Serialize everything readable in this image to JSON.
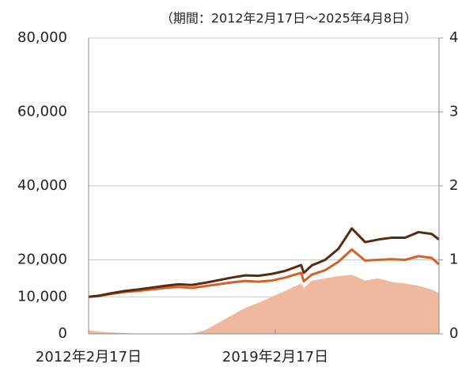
{
  "chart_data": {
    "type": "line",
    "subtitle": "（期間：2012年2月17日～2025年4月8日）",
    "x": [
      2012.13,
      2012.5,
      2013,
      2013.5,
      2014,
      2014.5,
      2015,
      2015.5,
      2016,
      2016.5,
      2017,
      2017.5,
      2018,
      2018.5,
      2019,
      2019.5,
      2020.1,
      2020.2,
      2020.5,
      2021,
      2021.5,
      2022,
      2022.5,
      2023,
      2023.5,
      2024,
      2024.5,
      2025,
      2025.27
    ],
    "series": [
      {
        "type": "area",
        "axis": "y2",
        "color": "#efb9a0",
        "values": [
          0.05,
          0.03,
          0.02,
          0.01,
          0,
          0,
          0,
          0,
          0,
          0.05,
          0.15,
          0.25,
          0.35,
          0.42,
          0.5,
          0.58,
          0.68,
          0.62,
          0.72,
          0.75,
          0.78,
          0.8,
          0.72,
          0.75,
          0.7,
          0.68,
          0.65,
          0.6,
          0.55
        ]
      },
      {
        "type": "line",
        "color": "#d2622a",
        "values": [
          10000,
          10200,
          10800,
          11300,
          11600,
          12000,
          12400,
          12700,
          12400,
          12900,
          13400,
          13900,
          14300,
          14100,
          14400,
          15200,
          16500,
          14200,
          16000,
          17200,
          19500,
          22800,
          19800,
          20000,
          20200,
          20000,
          21000,
          20500,
          18800
        ]
      },
      {
        "type": "line",
        "color": "#5a2a10",
        "values": [
          10000,
          10300,
          11000,
          11600,
          12000,
          12500,
          13000,
          13400,
          13200,
          13800,
          14500,
          15200,
          15800,
          15700,
          16200,
          17000,
          18600,
          16500,
          18500,
          20000,
          23000,
          28500,
          24800,
          25500,
          26000,
          26000,
          27500,
          27000,
          25500
        ]
      }
    ],
    "xlim": [
      2012.13,
      2025.27
    ],
    "xticks": [
      {
        "value": 2012.13,
        "label": "2012年2月17日"
      },
      {
        "value": 2019.13,
        "label": "2019年2月17日"
      }
    ],
    "ylim": [
      0,
      80000
    ],
    "yticks": [
      0,
      {
        "value": 10000,
        "label": "10,000"
      },
      {
        "value": 20000,
        "label": "20,000"
      },
      {
        "value": 40000,
        "label": "40,000"
      },
      {
        "value": 60000,
        "label": "60,000"
      },
      {
        "value": 80000,
        "label": "80,000"
      }
    ],
    "y2lim": [
      0,
      4
    ],
    "y2ticks": [
      0,
      1,
      2,
      3,
      4
    ],
    "grid": true
  }
}
